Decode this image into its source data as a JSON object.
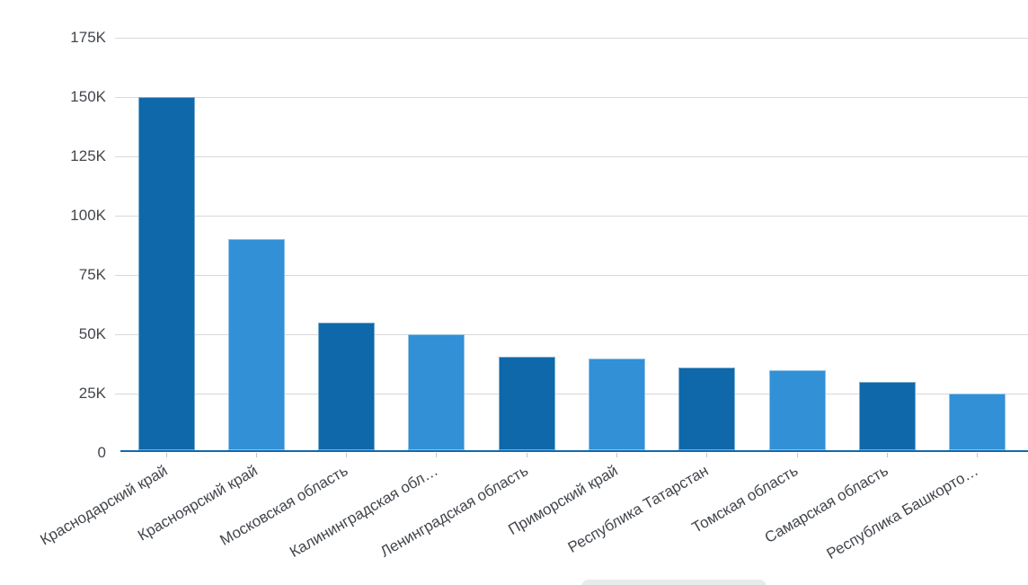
{
  "chart_data": {
    "type": "bar",
    "title": "",
    "xlabel": "",
    "ylabel": "",
    "categories": [
      "Краснодарский край",
      "Красноярский край",
      "Московская область",
      "Калининградская обл…",
      "Ленинградская область",
      "Приморский край",
      "Республика Татарстан",
      "Томская область",
      "Самарская область",
      "Республика Башкорто…"
    ],
    "values": [
      150000,
      90000,
      55000,
      50000,
      40500,
      39800,
      36000,
      35000,
      30000,
      25000
    ],
    "y_ticks": [
      {
        "value": 0,
        "label": "0"
      },
      {
        "value": 25000,
        "label": "25K"
      },
      {
        "value": 50000,
        "label": "50K"
      },
      {
        "value": 75000,
        "label": "75K"
      },
      {
        "value": 100000,
        "label": "100K"
      },
      {
        "value": 125000,
        "label": "125K"
      },
      {
        "value": 150000,
        "label": "150K"
      },
      {
        "value": 175000,
        "label": "175K"
      }
    ],
    "ylim": [
      0,
      175000
    ],
    "grid": "horizontal",
    "legend": "none",
    "x_tick_label_rotation_deg": -30,
    "bar_palette": [
      "#0e68aa",
      "#3190d6"
    ]
  },
  "colors": {
    "bar_dark": "#0e68aa",
    "bar_light": "#3190d6",
    "axis_line": "#1169ad",
    "gridline": "#d8d8d8",
    "tick": "#c2c6c9",
    "axis_text": "#42464c",
    "background": "#ffffff",
    "bottom_pill": "#e6ebec"
  }
}
